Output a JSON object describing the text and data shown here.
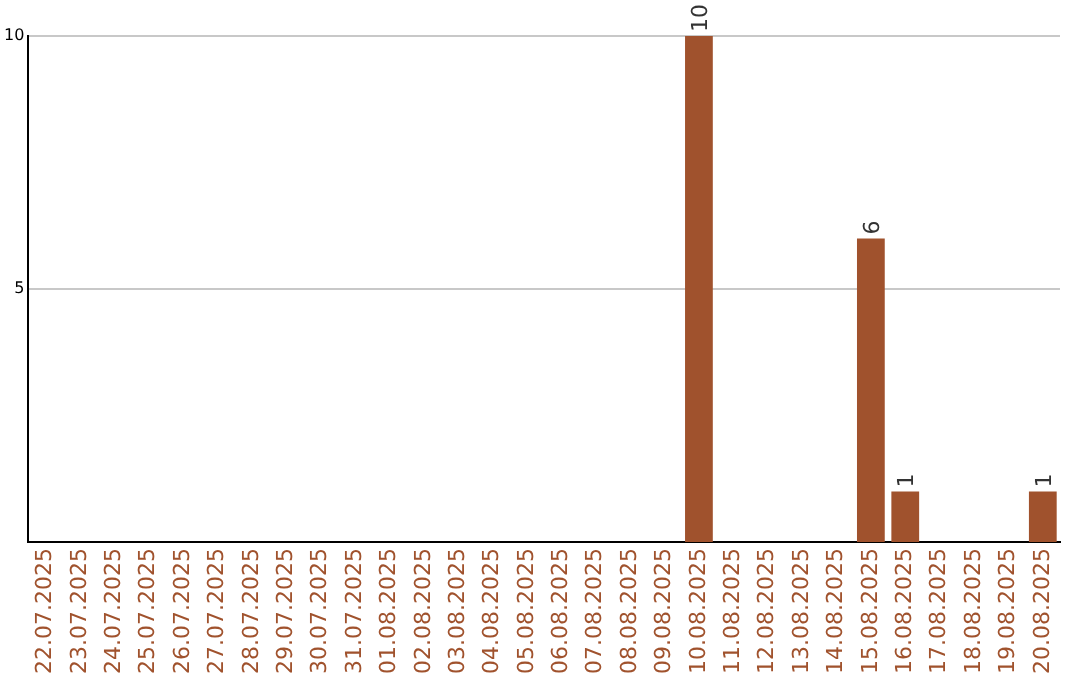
{
  "chart_data": {
    "type": "bar",
    "categories": [
      "22.07.2025",
      "23.07.2025",
      "24.07.2025",
      "25.07.2025",
      "26.07.2025",
      "27.07.2025",
      "28.07.2025",
      "29.07.2025",
      "30.07.2025",
      "31.07.2025",
      "01.08.2025",
      "02.08.2025",
      "03.08.2025",
      "04.08.2025",
      "05.08.2025",
      "06.08.2025",
      "07.08.2025",
      "08.08.2025",
      "09.08.2025",
      "10.08.2025",
      "11.08.2025",
      "12.08.2025",
      "13.08.2025",
      "14.08.2025",
      "15.08.2025",
      "16.08.2025",
      "17.08.2025",
      "18.08.2025",
      "19.08.2025",
      "20.08.2025"
    ],
    "values": [
      0,
      0,
      0,
      0,
      0,
      0,
      0,
      0,
      0,
      0,
      0,
      0,
      0,
      0,
      0,
      0,
      0,
      0,
      0,
      10,
      0,
      0,
      0,
      0,
      6,
      1,
      0,
      0,
      0,
      1
    ],
    "color": "#a0522d",
    "value_labels": [
      null,
      null,
      null,
      null,
      null,
      null,
      null,
      null,
      null,
      null,
      null,
      null,
      null,
      null,
      null,
      null,
      null,
      null,
      null,
      "10",
      null,
      null,
      null,
      null,
      "6",
      "1",
      null,
      null,
      null,
      "1"
    ],
    "ylim": [
      0,
      10
    ],
    "yticks": [
      5,
      10
    ],
    "grid": "y",
    "legend": false
  }
}
